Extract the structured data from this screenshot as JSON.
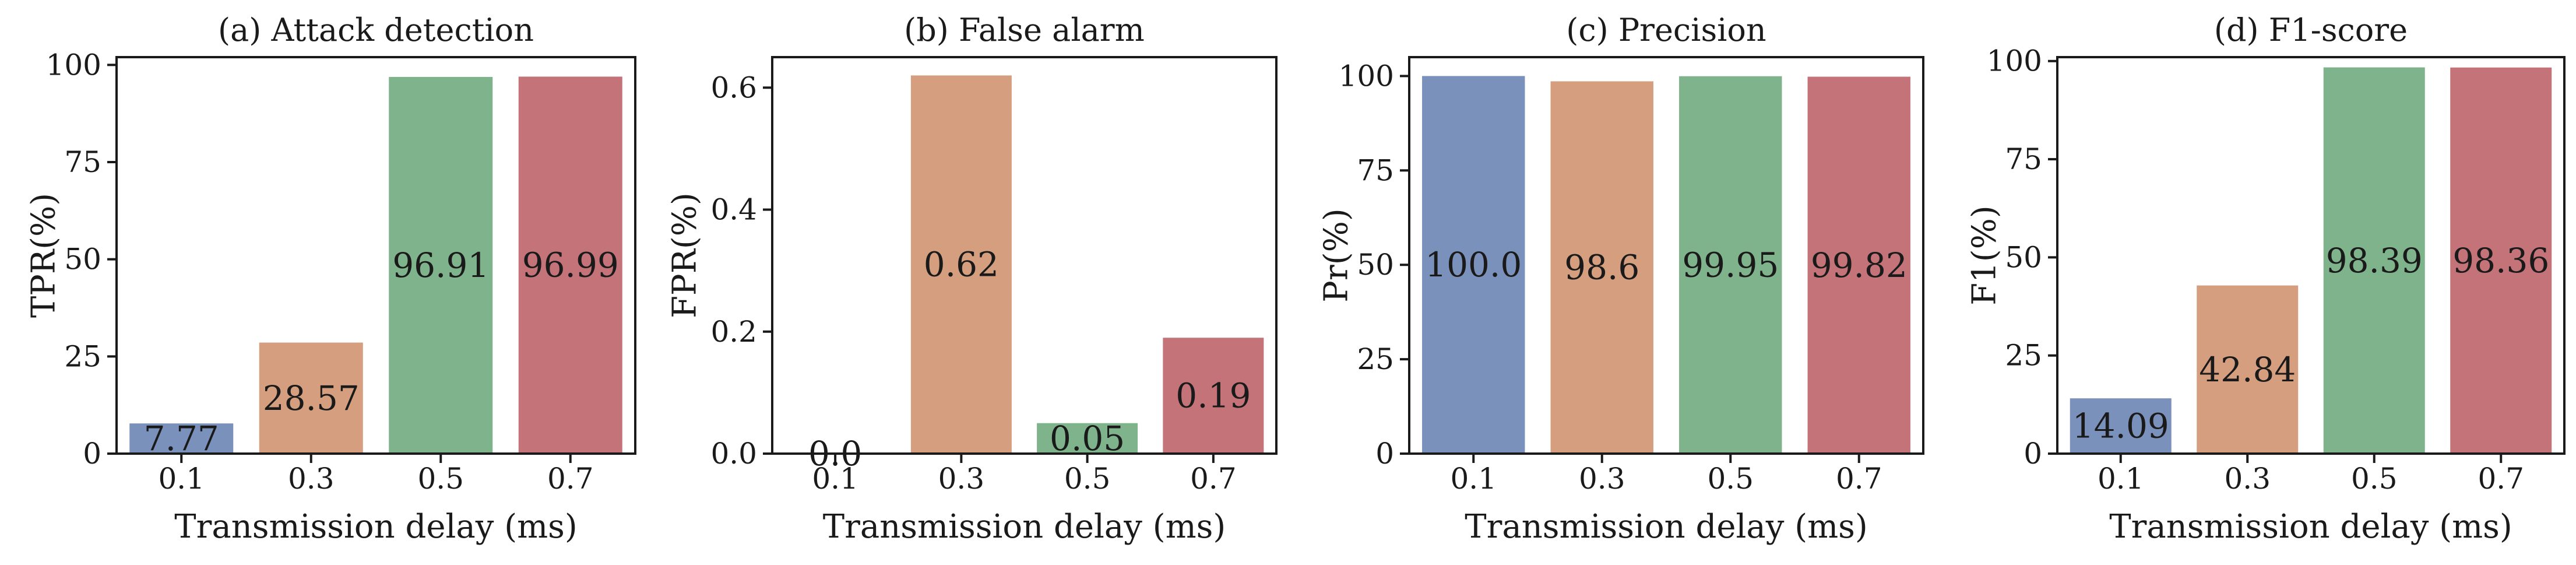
{
  "colors": [
    "#7a91bb",
    "#d59f7f",
    "#7fb38b",
    "#c47479"
  ],
  "chart_data": [
    {
      "type": "bar",
      "title": "(a) Attack detection",
      "xlabel": "Transmission delay (ms)",
      "ylabel": "TPR(%)",
      "categories": [
        "0.1",
        "0.3",
        "0.5",
        "0.7"
      ],
      "values": [
        7.77,
        28.57,
        96.91,
        96.99
      ],
      "value_labels": [
        "7.77",
        "28.57",
        "96.91",
        "96.99"
      ],
      "ylim": [
        0,
        102
      ],
      "yticks": [
        0,
        25,
        50,
        75,
        100
      ],
      "ytick_labels": [
        "0",
        "25",
        "50",
        "75",
        "100"
      ]
    },
    {
      "type": "bar",
      "title": "(b) False alarm",
      "xlabel": "Transmission delay (ms)",
      "ylabel": "FPR(%)",
      "categories": [
        "0.1",
        "0.3",
        "0.5",
        "0.7"
      ],
      "values": [
        0.0,
        0.62,
        0.05,
        0.19
      ],
      "value_labels": [
        "0.0",
        "0.62",
        "0.05",
        "0.19"
      ],
      "ylim": [
        0,
        0.65
      ],
      "yticks": [
        0,
        0.2,
        0.4,
        0.6
      ],
      "ytick_labels": [
        "0.0",
        "0.2",
        "0.4",
        "0.6"
      ]
    },
    {
      "type": "bar",
      "title": "(c) Precision",
      "xlabel": "Transmission delay (ms)",
      "ylabel": "Pr(%)",
      "categories": [
        "0.1",
        "0.3",
        "0.5",
        "0.7"
      ],
      "values": [
        100.0,
        98.6,
        99.95,
        99.82
      ],
      "value_labels": [
        "100.0",
        "98.6",
        "99.95",
        "99.82"
      ],
      "ylim": [
        0,
        105
      ],
      "yticks": [
        0,
        25,
        50,
        75,
        100
      ],
      "ytick_labels": [
        "0",
        "25",
        "50",
        "75",
        "100"
      ]
    },
    {
      "type": "bar",
      "title": "(d) F1-score",
      "xlabel": "Transmission delay (ms)",
      "ylabel": "F1(%)",
      "categories": [
        "0.1",
        "0.3",
        "0.5",
        "0.7"
      ],
      "values": [
        14.09,
        42.84,
        98.39,
        98.36
      ],
      "value_labels": [
        "14.09",
        "42.84",
        "98.39",
        "98.36"
      ],
      "ylim": [
        0,
        101
      ],
      "yticks": [
        0,
        25,
        50,
        75,
        100
      ],
      "ytick_labels": [
        "0",
        "25",
        "50",
        "75",
        "100"
      ]
    }
  ]
}
